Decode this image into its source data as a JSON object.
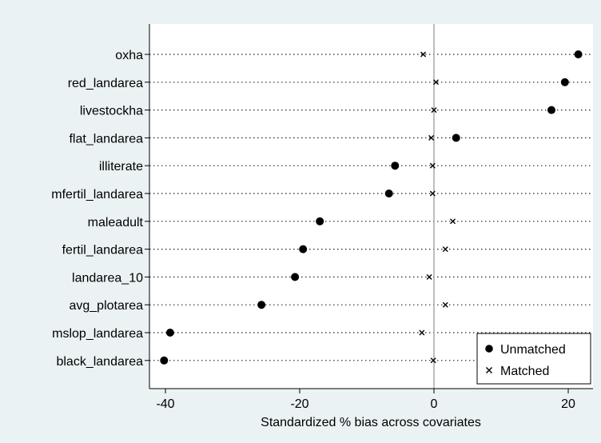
{
  "chart_data": {
    "type": "scatter",
    "title": "",
    "xlabel": "Standardized % bias across covariates",
    "ylabel": "",
    "xlim": [
      -42,
      23.5
    ],
    "xticks": [
      -40,
      -20,
      0,
      20
    ],
    "xtick_labels": [
      "-40",
      "-20",
      "0",
      "20"
    ],
    "categories": [
      "oxha",
      "red_landarea",
      "livestockha",
      "flat_landarea",
      "illiterate",
      "mfertil_landarea",
      "maleadult",
      "fertil_landarea",
      "landarea_10",
      "avg_plotarea",
      "mslop_landarea",
      "black_landarea"
    ],
    "series": [
      {
        "name": "Unmatched",
        "marker": "circle",
        "values": [
          21.5,
          19.5,
          17.5,
          3.3,
          -5.8,
          -6.7,
          -17.0,
          -19.5,
          -20.7,
          -25.7,
          -39.3,
          -40.2
        ]
      },
      {
        "name": "Matched",
        "marker": "x",
        "values": [
          -1.6,
          0.3,
          0.0,
          -0.4,
          -0.2,
          -0.2,
          2.8,
          1.7,
          -0.7,
          1.7,
          -1.8,
          -0.1
        ]
      }
    ],
    "reference_line": 0,
    "legend_position": "bottom-right",
    "grid": "dotted horizontal"
  },
  "colors": {
    "background": "#eaf2f3",
    "plot_background": "#ffffff",
    "marker": "#000000",
    "reference_line": "#9a9a9a",
    "grid": "#222222"
  }
}
